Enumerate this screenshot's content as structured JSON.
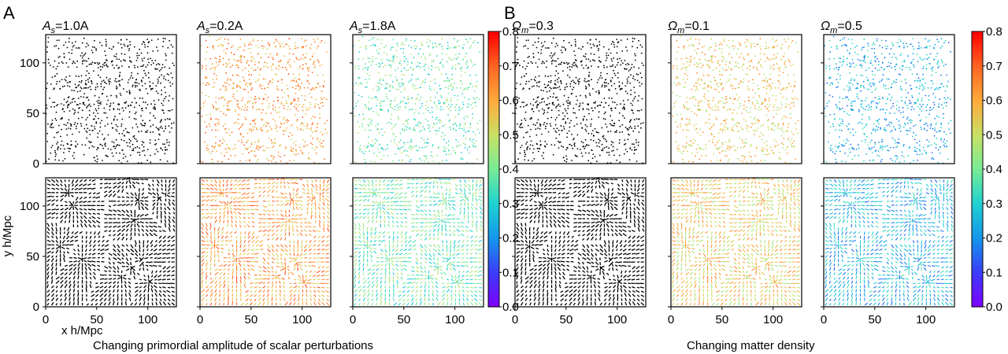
{
  "figure": {
    "section_A": "A",
    "section_B": "B",
    "caption_A": "Changing primordial amplitude of scalar perturbations",
    "caption_B": "Changing matter density",
    "ylabel": "y h/Mpc",
    "xlabel": "x h/Mpc"
  },
  "colors": {
    "frame": "#000000",
    "particle_black": "#000000"
  },
  "chart_data": [
    {
      "type": "heatmap",
      "group": "A",
      "colorbar": {
        "ticks": [
          "0.0",
          "0.1",
          "0.2",
          "0.3",
          "0.4",
          "0.5",
          "0.6",
          "0.7",
          "0.8"
        ],
        "range": [
          0,
          0.8
        ],
        "colormap": "rainbow"
      },
      "axes": {
        "xlim": [
          0,
          128
        ],
        "ylim": [
          0,
          128
        ],
        "xticks": [
          "0",
          "50",
          "100"
        ],
        "yticks": [
          "0",
          "50",
          "100"
        ]
      },
      "columns": [
        {
          "title_symbol": "A",
          "title_sub": "s",
          "title_value": "=1.0A",
          "color_mode": "black",
          "mean_value": null
        },
        {
          "title_symbol": "A",
          "title_sub": "s",
          "title_value": "=0.2A",
          "color_mode": "mapped",
          "mean_value": 0.62
        },
        {
          "title_symbol": "A",
          "title_sub": "s",
          "title_value": "=1.8A",
          "color_mode": "mapped",
          "mean_value": 0.38
        }
      ],
      "rows": [
        "positions",
        "displacements"
      ]
    },
    {
      "type": "heatmap",
      "group": "B",
      "colorbar": {
        "ticks": [
          "0.0",
          "0.1",
          "0.2",
          "0.3",
          "0.4",
          "0.5",
          "0.6",
          "0.7",
          "0.8"
        ],
        "range": [
          0,
          0.8
        ],
        "colormap": "rainbow"
      },
      "axes": {
        "xlim": [
          0,
          128
        ],
        "ylim": [
          0,
          128
        ],
        "xticks": [
          "0",
          "50",
          "100"
        ],
        "yticks": [
          "0",
          "50",
          "100"
        ]
      },
      "columns": [
        {
          "title_symbol": "Ω",
          "title_sub": "m",
          "title_value": "=0.3",
          "color_mode": "black",
          "mean_value": null
        },
        {
          "title_symbol": "Ω",
          "title_sub": "m",
          "title_value": "=0.1",
          "color_mode": "mapped",
          "mean_value": 0.55
        },
        {
          "title_symbol": "Ω",
          "title_sub": "m",
          "title_value": "=0.5",
          "color_mode": "mapped",
          "mean_value": 0.25
        }
      ],
      "rows": [
        "positions",
        "displacements"
      ]
    }
  ]
}
